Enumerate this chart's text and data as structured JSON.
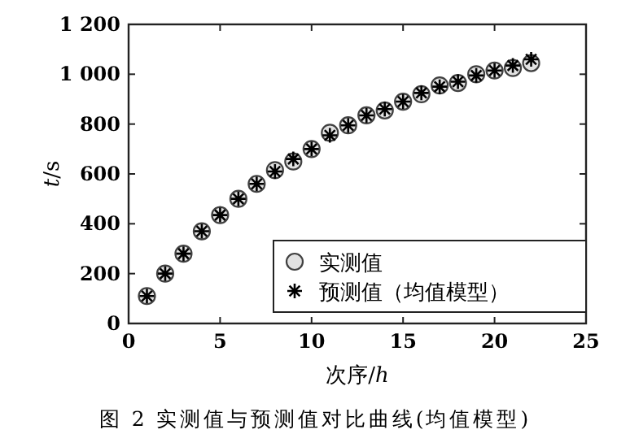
{
  "chart_data": {
    "type": "scatter",
    "xlabel": "次序/*h*",
    "ylabel": "*t*/s",
    "annotations": [
      "图 2  实测值与预测值对比曲线(均值模型)"
    ],
    "x": [
      1,
      2,
      3,
      4,
      5,
      6,
      7,
      8,
      9,
      10,
      11,
      12,
      13,
      14,
      15,
      16,
      17,
      18,
      19,
      20,
      21,
      22
    ],
    "series": [
      {
        "name": "实测值",
        "color": "#404040",
        "marker": "circle",
        "values": [
          110,
          200,
          280,
          370,
          435,
          500,
          560,
          615,
          650,
          700,
          765,
          795,
          835,
          855,
          890,
          920,
          955,
          965,
          1000,
          1015,
          1025,
          1045
        ]
      },
      {
        "name": "预测值（均值模型）",
        "color": "#000000",
        "marker": "cross",
        "values": [
          110,
          200,
          280,
          370,
          435,
          500,
          560,
          610,
          660,
          700,
          755,
          795,
          835,
          860,
          890,
          925,
          950,
          970,
          995,
          1015,
          1035,
          1060
        ]
      }
    ],
    "xlim": [
      0,
      25
    ],
    "xticks": [
      0,
      5,
      10,
      15,
      20,
      25
    ],
    "ylim": [
      0,
      1200
    ],
    "yticks": [
      0,
      200,
      400,
      600,
      800,
      {
        "value": 1000,
        "label": "1 000"
      },
      {
        "value": 1200,
        "label": "1 200"
      }
    ],
    "grid": false,
    "legend": "bottom right"
  }
}
